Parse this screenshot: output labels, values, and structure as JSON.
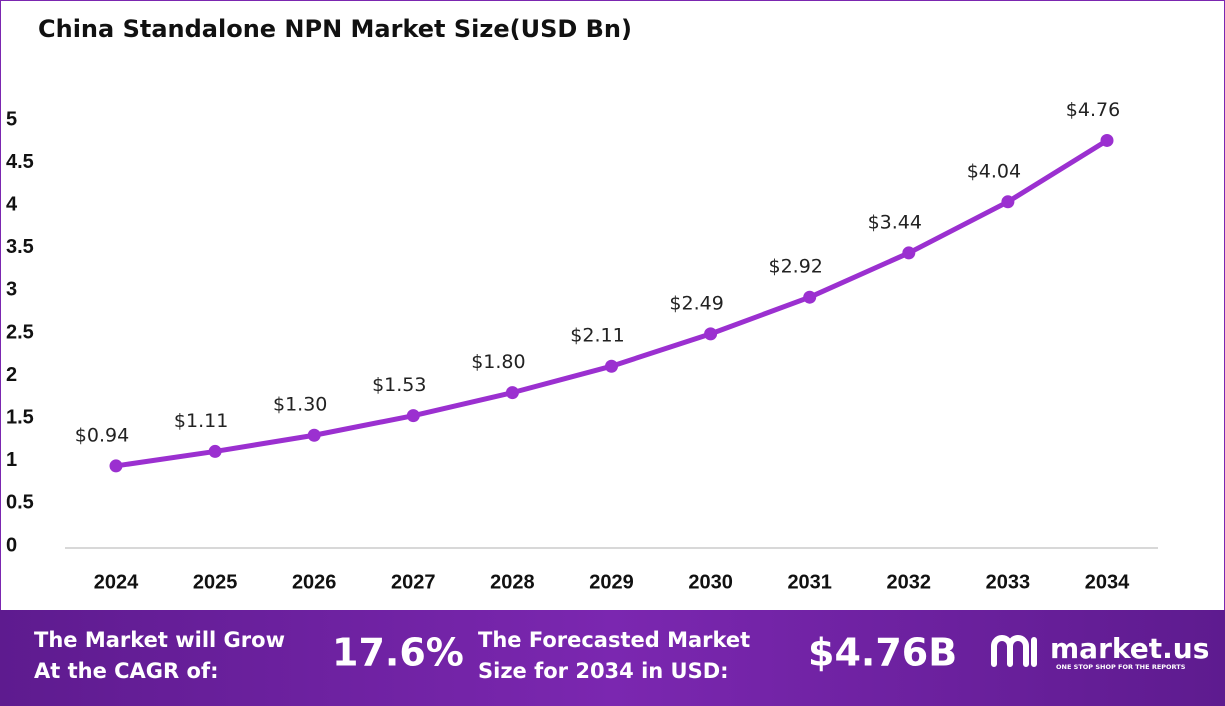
{
  "chart_data": {
    "type": "line",
    "title": "China Standalone NPN Market Size(USD Bn)",
    "categories": [
      "2024",
      "2025",
      "2026",
      "2027",
      "2028",
      "2029",
      "2030",
      "2031",
      "2032",
      "2033",
      "2034"
    ],
    "series": [
      {
        "name": "Market Size",
        "color": "#9b30d0",
        "values": [
          0.94,
          1.11,
          1.3,
          1.53,
          1.8,
          2.11,
          2.49,
          2.92,
          3.44,
          4.04,
          4.76
        ],
        "value_labels": [
          "$0.94",
          "$1.11",
          "$1.30",
          "$1.53",
          "$1.80",
          "$2.11",
          "$2.49",
          "$2.92",
          "$3.44",
          "$4.04",
          "$4.76"
        ]
      }
    ],
    "ylim": [
      0,
      5
    ],
    "yticks": [
      0,
      0.5,
      1,
      1.5,
      2,
      2.5,
      3,
      3.5,
      4,
      4.5,
      5
    ],
    "grid": false
  },
  "footer": {
    "cagr_label": [
      "The Market will Grow",
      "At the CAGR of:"
    ],
    "cagr_value": "17.6%",
    "forecast_label": [
      "The Forecasted Market",
      "Size for 2034 in USD:"
    ],
    "forecast_value": "$4.76B",
    "brand": "market.us",
    "tagline": "ONE STOP SHOP FOR THE REPORTS"
  }
}
